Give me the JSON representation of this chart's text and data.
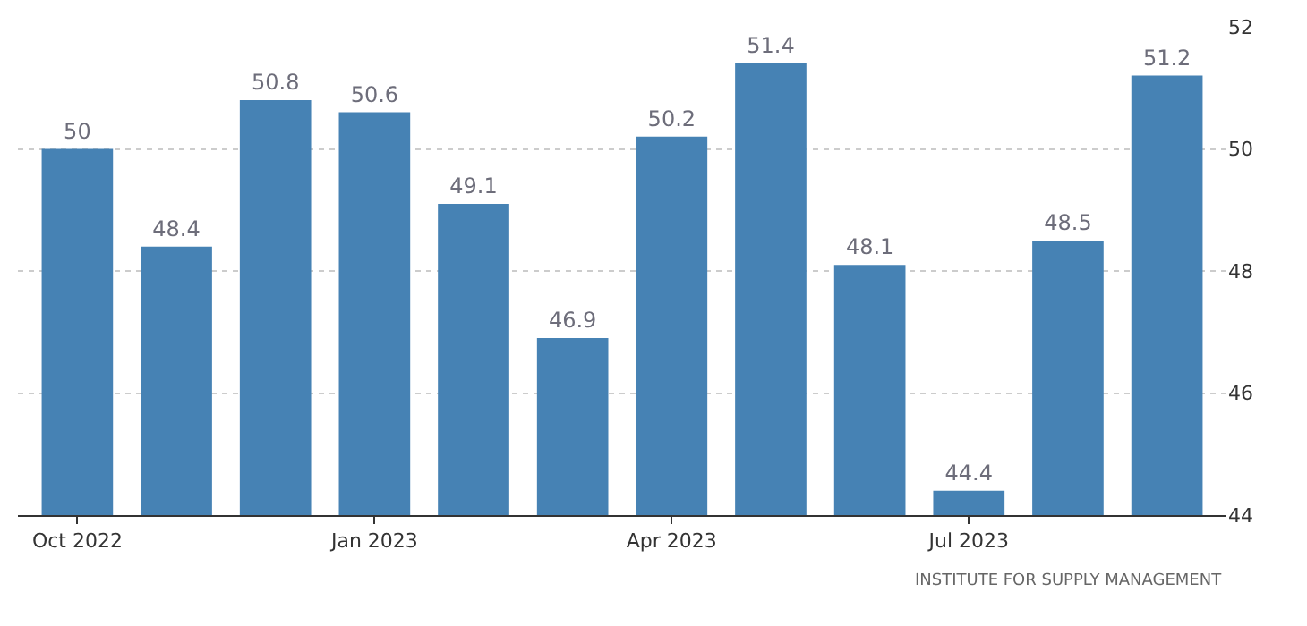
{
  "chart_data": {
    "type": "bar",
    "categories": [
      "Oct 2022",
      null,
      null,
      "Jan 2023",
      null,
      null,
      "Apr 2023",
      null,
      null,
      "Jul 2023",
      null,
      null
    ],
    "values": [
      50,
      48.4,
      50.8,
      50.6,
      49.1,
      46.9,
      50.2,
      51.4,
      48.1,
      44.4,
      48.5,
      51.2
    ],
    "color": "#4682b4",
    "ylim": [
      44,
      52
    ],
    "yticks": [
      44,
      46,
      48,
      50,
      52
    ],
    "grid": "y",
    "data_labels": true,
    "annotations": [
      "INSTITUTE FOR SUPPLY MANAGEMENT"
    ]
  }
}
